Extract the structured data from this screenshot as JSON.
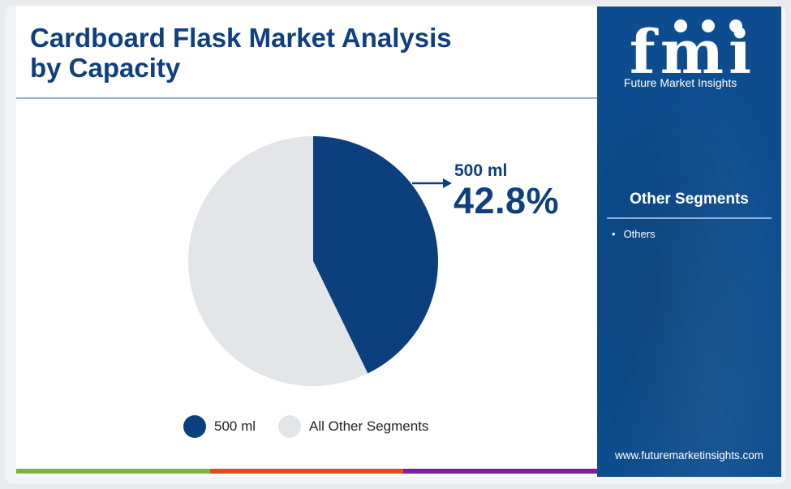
{
  "title": "Cardboard Flask Market Analysis by Capacity",
  "chart_data": {
    "type": "pie",
    "categories": [
      "500 ml",
      "All Other Segments"
    ],
    "values": [
      42.8,
      57.2
    ],
    "colors": [
      "#0b3f7e",
      "#e4e5e8"
    ],
    "callout": {
      "label": "500 ml",
      "value": "42.8%"
    },
    "legend": [
      "500 ml",
      "All Other Segments"
    ],
    "legend_position": "bottom"
  },
  "sidebar": {
    "brand_letters": "fmi",
    "brand_name": "Future Market Insights",
    "heading": "Other Segments",
    "items": [
      "Others"
    ],
    "url": "www.futuremarketinsights.com"
  },
  "bottom_bar_colors": [
    "#7cb342",
    "#e64a19",
    "#7b1fa2"
  ]
}
